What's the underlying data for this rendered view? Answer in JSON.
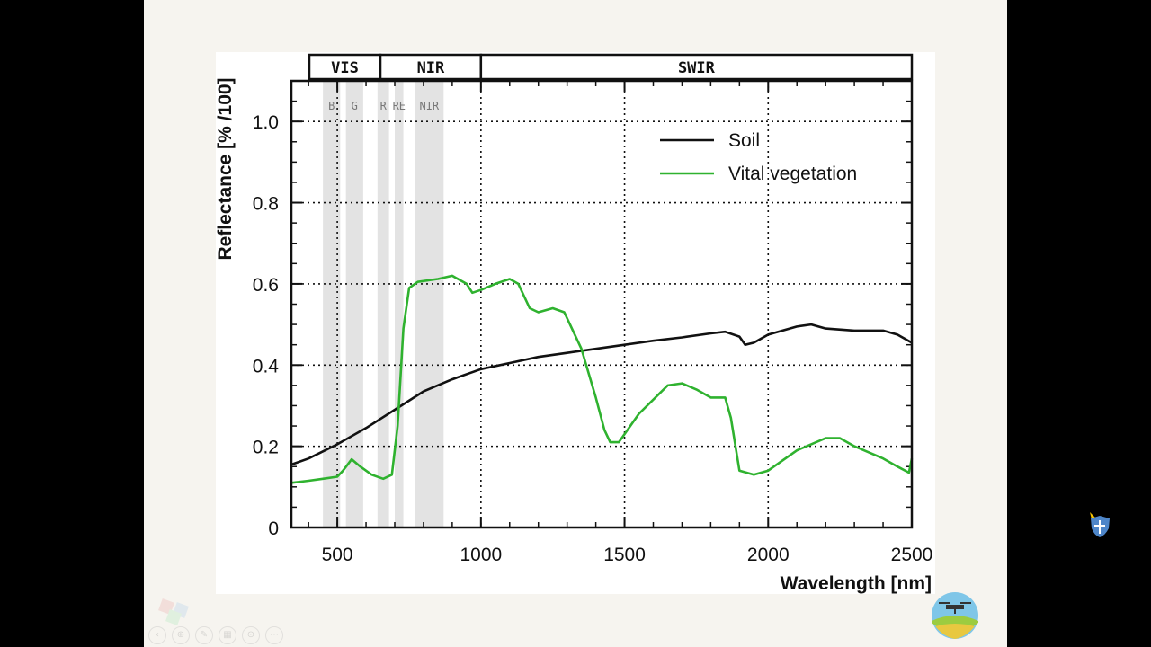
{
  "chart_data": {
    "type": "line",
    "title": "",
    "xlabel": "Wavelength [nm]",
    "ylabel": "Reflectance [% /100]",
    "xlim": [
      340,
      2500
    ],
    "ylim": [
      0,
      1.1
    ],
    "x_ticks": [
      500,
      1000,
      1500,
      2000,
      2500
    ],
    "x_tick_labels": [
      "500",
      "1000",
      "1500",
      "2000",
      "2500"
    ],
    "y_ticks": [
      0,
      0.2,
      0.4,
      0.6,
      0.8,
      1.0
    ],
    "y_tick_labels": [
      "0",
      "0.2",
      "0.4",
      "0.6",
      "0.8",
      "1.0"
    ],
    "grid": true,
    "legend_position": "top-right",
    "spectral_bands": [
      {
        "label": "VIS",
        "start": 340,
        "end": 650
      },
      {
        "label": "NIR",
        "start": 650,
        "end": 1000
      },
      {
        "label": "SWIR",
        "start": 1000,
        "end": 2500
      }
    ],
    "sensor_regions": [
      {
        "label": "B",
        "start": 450,
        "end": 510
      },
      {
        "label": "G",
        "start": 530,
        "end": 590
      },
      {
        "label": "R",
        "start": 640,
        "end": 680
      },
      {
        "label": "RE",
        "start": 700,
        "end": 730
      },
      {
        "label": "NIR",
        "start": 770,
        "end": 870
      }
    ],
    "series": [
      {
        "name": "Soil",
        "color": "#111111",
        "x": [
          340,
          400,
          500,
          600,
          700,
          800,
          900,
          1000,
          1100,
          1200,
          1300,
          1400,
          1500,
          1600,
          1700,
          1800,
          1850,
          1900,
          1920,
          1950,
          2000,
          2100,
          2150,
          2200,
          2300,
          2400,
          2450,
          2500
        ],
        "y": [
          0.155,
          0.17,
          0.205,
          0.245,
          0.29,
          0.335,
          0.365,
          0.39,
          0.405,
          0.42,
          0.43,
          0.44,
          0.45,
          0.46,
          0.468,
          0.478,
          0.482,
          0.47,
          0.45,
          0.455,
          0.475,
          0.495,
          0.5,
          0.49,
          0.485,
          0.485,
          0.475,
          0.455
        ]
      },
      {
        "name": "Vital vegetation",
        "color": "#2fb22f",
        "x": [
          340,
          400,
          450,
          500,
          520,
          550,
          580,
          620,
          660,
          690,
          710,
          730,
          750,
          780,
          850,
          900,
          950,
          970,
          1000,
          1050,
          1100,
          1130,
          1170,
          1200,
          1250,
          1290,
          1350,
          1400,
          1430,
          1450,
          1480,
          1550,
          1650,
          1700,
          1750,
          1800,
          1850,
          1870,
          1900,
          1950,
          2000,
          2100,
          2200,
          2250,
          2300,
          2400,
          2450,
          2490,
          2500
        ],
        "y": [
          0.11,
          0.115,
          0.12,
          0.125,
          0.14,
          0.168,
          0.15,
          0.13,
          0.12,
          0.13,
          0.25,
          0.49,
          0.59,
          0.605,
          0.612,
          0.62,
          0.6,
          0.578,
          0.585,
          0.6,
          0.612,
          0.6,
          0.54,
          0.53,
          0.54,
          0.53,
          0.44,
          0.32,
          0.24,
          0.21,
          0.21,
          0.28,
          0.35,
          0.355,
          0.34,
          0.32,
          0.32,
          0.27,
          0.14,
          0.13,
          0.14,
          0.19,
          0.22,
          0.22,
          0.2,
          0.17,
          0.15,
          0.135,
          0.17
        ]
      }
    ]
  },
  "player_controls": [
    "‹",
    "⊕",
    "✎",
    "▦",
    "⊙",
    "⋯"
  ]
}
